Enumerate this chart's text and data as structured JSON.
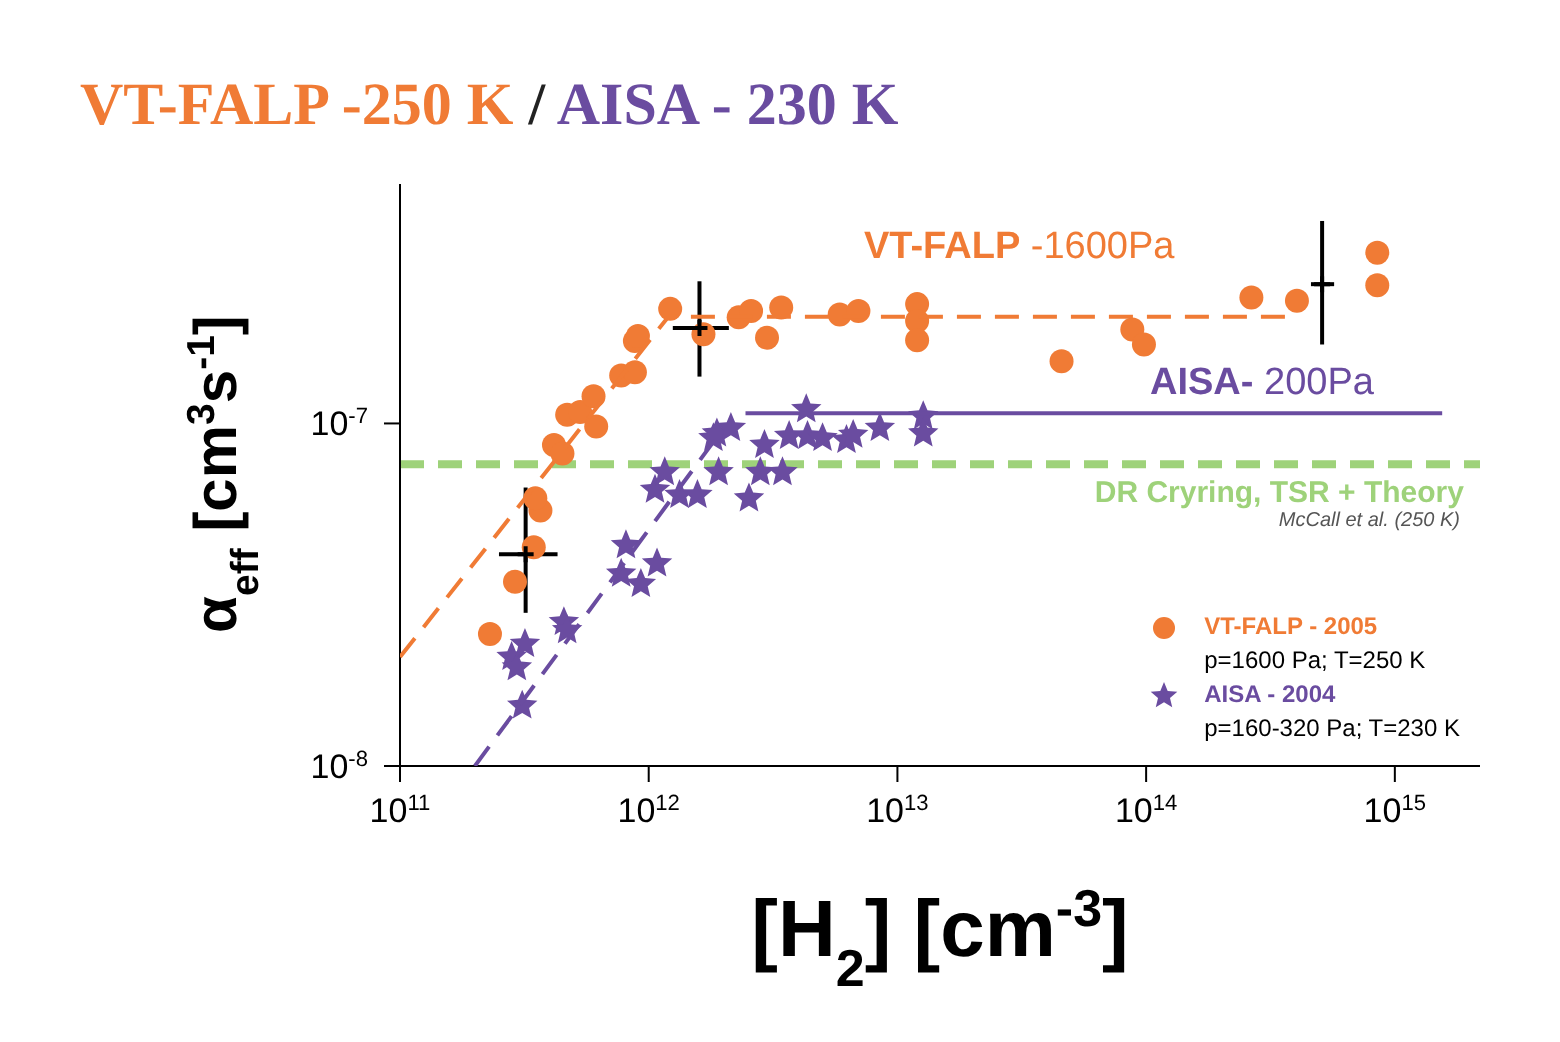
{
  "chart_data": {
    "type": "scatter",
    "title": "VT-FALP -250 K / AISA - 230 K",
    "xlabel": "[H$_{2}$] [cm$^{-3}$]",
    "ylabel": "α$_{eff}$ [cm$^{3}$s$^{-1}$]",
    "log": "xy",
    "grid": false,
    "legend": "bottom right",
    "xlim": [
      100000000000.0,
      2200000000000000.0
    ],
    "ylim": [
      1e-08,
      5e-07
    ],
    "xticks": [
      {
        "value": 100000000000.0,
        "label": "10$^{11}$"
      },
      {
        "value": 1000000000000.0,
        "label": "10$^{12}$"
      },
      {
        "value": 10000000000000.0,
        "label": "10$^{13}$"
      },
      {
        "value": 100000000000000.0,
        "label": "10$^{14}$"
      },
      {
        "value": 1000000000000000.0,
        "label": "10$^{15}$"
      }
    ],
    "yticks": [
      {
        "value": 1e-08,
        "label": "10$^{-8}$"
      },
      {
        "value": 1e-07,
        "label": "10$^{-7}$"
      }
    ],
    "series": [
      {
        "name": "VT-FALP - 2005",
        "marker": "circle",
        "color": "#f07b35",
        "x": [
          230000000000.0,
          290000000000.0,
          345000000000.0,
          367000000000.0,
          350000000000.0,
          416000000000.0,
          450000000000.0,
          470000000000.0,
          530000000000.0,
          615000000000.0,
          600000000000.0,
          775000000000.0,
          880000000000.0,
          880000000000.0,
          905000000000.0,
          1220000000000.0,
          1660000000000.0,
          2300000000000.0,
          2580000000000.0,
          2990000000000.0,
          3410000000000.0,
          5860000000000.0,
          6970000000000.0,
          12000000000000.0,
          12000000000000.0,
          12000000000000.0,
          45700000000000.0,
          88000000000000.0,
          98000000000000.0,
          265000000000000.0,
          404000000000000.0,
          850000000000000.0,
          850000000000000.0
        ],
        "values": [
          2.43e-08,
          3.45e-08,
          4.35e-08,
          5.57e-08,
          6.05e-08,
          8.65e-08,
          8.17e-08,
          1.06e-07,
          1.08e-07,
          9.8e-08,
          1.2e-07,
          1.38e-07,
          1.41e-07,
          1.74e-07,
          1.8e-07,
          2.16e-07,
          1.82e-07,
          2.04e-07,
          2.13e-07,
          1.78e-07,
          2.18e-07,
          2.08e-07,
          2.13e-07,
          2.23e-07,
          1.99e-07,
          1.75e-07,
          1.52e-07,
          1.88e-07,
          1.7e-07,
          2.33e-07,
          2.28e-07,
          3.15e-07,
          2.53e-07
        ]
      },
      {
        "name": "AISA - 2004",
        "marker": "star",
        "color": "#6a4ca0",
        "x": [
          310000000000.0,
          281000000000.0,
          295000000000.0,
          318000000000.0,
          456000000000.0,
          470000000000.0,
          810000000000.0,
          775000000000.0,
          930000000000.0,
          1080000000000.0,
          1060000000000.0,
          1160000000000.0,
          1330000000000.0,
          1570000000000.0,
          1910000000000.0,
          1820000000000.0,
          1880000000000.0,
          2140000000000.0,
          2530000000000.0,
          2810000000000.0,
          2920000000000.0,
          3450000000000.0,
          3670000000000.0,
          4300000000000.0,
          4350000000000.0,
          5000000000000.0,
          6240000000000.0,
          6640000000000.0,
          8500000000000.0,
          12700000000000.0,
          12700000000000.0
        ],
        "values": [
          1.5e-08,
          2.08e-08,
          1.94e-08,
          2.27e-08,
          2.63e-08,
          2.49e-08,
          4.41e-08,
          3.64e-08,
          3.4e-08,
          3.9e-08,
          6.4e-08,
          7.2e-08,
          6.18e-08,
          6.18e-08,
          7.2e-08,
          9.06e-08,
          9.35e-08,
          9.7e-08,
          6.04e-08,
          7.2e-08,
          8.65e-08,
          7.2e-08,
          9.19e-08,
          1.1e-07,
          9.19e-08,
          9.06e-08,
          8.94e-08,
          9.26e-08,
          9.7e-08,
          1.05e-07,
          9.35e-08
        ]
      },
      {
        "type": "line",
        "color": "#f07b35",
        "line_style": "dashed",
        "marker": "none",
        "x": [
          100000000000.0,
          1200000000000.0,
          400000000000000.0
        ],
        "values": [
          2.08e-08,
          2.05e-07,
          2.05e-07
        ]
      },
      {
        "type": "line",
        "color": "#6a4ca0",
        "line_style": "dashed",
        "marker": "none",
        "x": [
          200000000000.0,
          2000000000000.0
        ],
        "values": [
          1e-08,
          9.7e-08
        ]
      },
      {
        "type": "line",
        "color": "#6a4ca0",
        "line_style": "solid",
        "marker": "none",
        "x": [
          2450000000000.0,
          1550000000000000.0
        ],
        "values": [
          1.07e-07,
          1.07e-07
        ]
      },
      {
        "marker": "cross",
        "color": "#000000",
        "x": [
          320000000000.0,
          1600000000000.0,
          510000000000000.0
        ],
        "values": [
          4.15e-08,
          1.9e-07,
          2.55e-07
        ],
        "errors": [
          [
            2.8e-08,
            6.5e-08
          ],
          [
            1.37e-07,
            2.6e-07
          ],
          [
            1.7e-07,
            3.9e-07
          ]
        ],
        "xerrors": [
          [
            250000000000.0,
            430000000000.0
          ],
          [
            1250000000000.0,
            2100000000000.0
          ],
          [
            460000000000000.0,
            570000000000000.0
          ]
        ]
      }
    ],
    "ref_lines": [
      {
        "axis": "y",
        "value": 7.6e-08,
        "label": "DR Cryring, TSR + Theory",
        "color": "#9ed27a",
        "line_style": "dashed"
      }
    ],
    "annotations": [
      "VT-FALP -1600Pa",
      "AISA- 200Pa",
      "McCall et al. (250 K)",
      "p=1600 Pa; T=250 K",
      "p=160-320 Pa; T=230 K"
    ]
  }
}
